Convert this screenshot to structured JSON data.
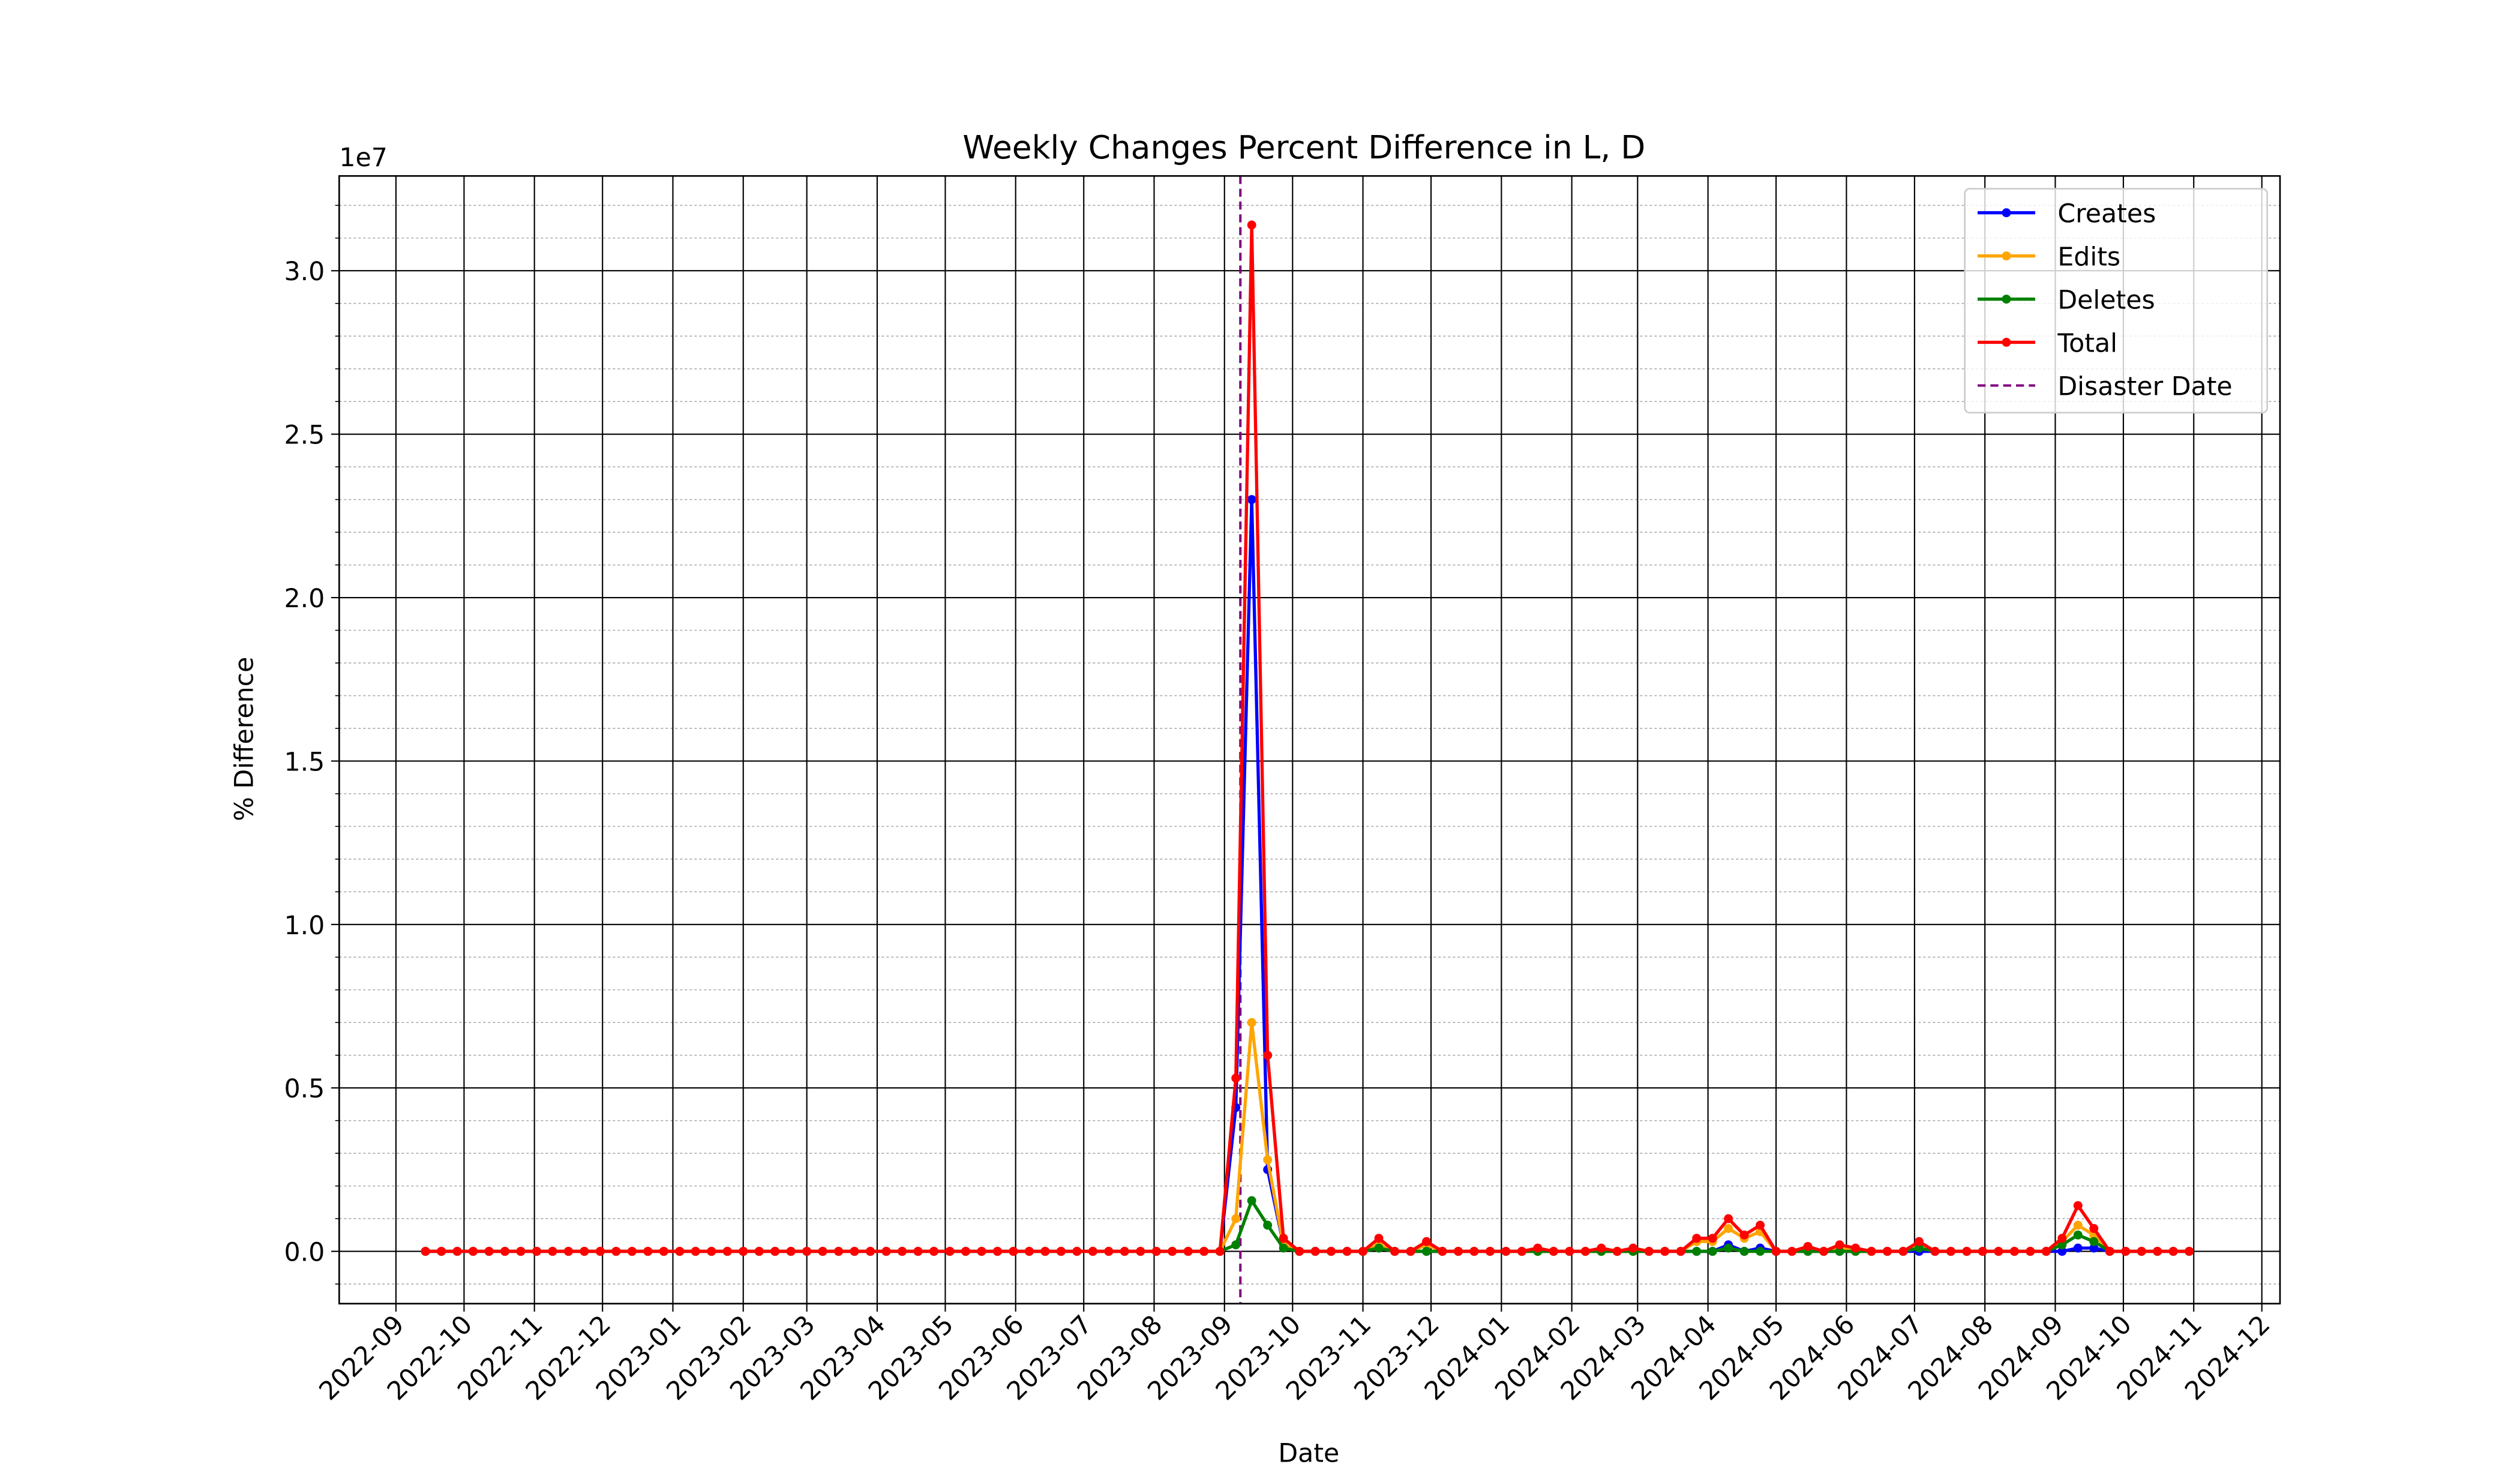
{
  "chart_data": {
    "type": "line",
    "title": "Weekly Changes Percent Difference in L, D",
    "x_label": "Date",
    "y_label": "% Difference",
    "y_offset_label": "1e7",
    "grid": true,
    "legend_position": "upper right",
    "xlim": [
      "2022-08-07",
      "2024-12-09"
    ],
    "xticks": [
      {
        "value": "2022-09-01",
        "label": "2022-09"
      },
      {
        "value": "2022-10-01",
        "label": "2022-10"
      },
      {
        "value": "2022-11-01",
        "label": "2022-11"
      },
      {
        "value": "2022-12-01",
        "label": "2022-12"
      },
      {
        "value": "2023-01-01",
        "label": "2023-01"
      },
      {
        "value": "2023-02-01",
        "label": "2023-02"
      },
      {
        "value": "2023-03-01",
        "label": "2023-03"
      },
      {
        "value": "2023-04-01",
        "label": "2023-04"
      },
      {
        "value": "2023-05-01",
        "label": "2023-05"
      },
      {
        "value": "2023-06-01",
        "label": "2023-06"
      },
      {
        "value": "2023-07-01",
        "label": "2023-07"
      },
      {
        "value": "2023-08-01",
        "label": "2023-08"
      },
      {
        "value": "2023-09-01",
        "label": "2023-09"
      },
      {
        "value": "2023-10-01",
        "label": "2023-10"
      },
      {
        "value": "2023-11-01",
        "label": "2023-11"
      },
      {
        "value": "2023-12-01",
        "label": "2023-12"
      },
      {
        "value": "2024-01-01",
        "label": "2024-01"
      },
      {
        "value": "2024-02-01",
        "label": "2024-02"
      },
      {
        "value": "2024-03-01",
        "label": "2024-03"
      },
      {
        "value": "2024-04-01",
        "label": "2024-04"
      },
      {
        "value": "2024-05-01",
        "label": "2024-05"
      },
      {
        "value": "2024-06-01",
        "label": "2024-06"
      },
      {
        "value": "2024-07-01",
        "label": "2024-07"
      },
      {
        "value": "2024-08-01",
        "label": "2024-08"
      },
      {
        "value": "2024-09-01",
        "label": "2024-09"
      },
      {
        "value": "2024-10-01",
        "label": "2024-10"
      },
      {
        "value": "2024-11-01",
        "label": "2024-11"
      },
      {
        "value": "2024-12-01",
        "label": "2024-12"
      }
    ],
    "ylim": [
      -0.16,
      3.29
    ],
    "yticks": [
      {
        "value": 0,
        "label": "0.0"
      },
      0.5,
      {
        "value": 1,
        "label": "1.0"
      },
      1.5,
      {
        "value": 2,
        "label": "2.0"
      },
      2.5,
      {
        "value": 3,
        "label": "3.0"
      }
    ],
    "yminorticks": [
      -0.1,
      0.1,
      0.2,
      0.3,
      0.4,
      0.6,
      0.7,
      0.8,
      0.9,
      1.1,
      1.2,
      1.3,
      1.4,
      1.6,
      1.7,
      1.8,
      1.9,
      2.1,
      2.2,
      2.3,
      2.4,
      2.6,
      2.7,
      2.8,
      2.9,
      3.1,
      3.2
    ],
    "x": [
      "2022-09-14",
      "2022-09-21",
      "2022-09-28",
      "2022-10-05",
      "2022-10-12",
      "2022-10-19",
      "2022-10-26",
      "2022-11-02",
      "2022-11-09",
      "2022-11-16",
      "2022-11-23",
      "2022-11-30",
      "2022-12-07",
      "2022-12-14",
      "2022-12-21",
      "2022-12-28",
      "2023-01-04",
      "2023-01-11",
      "2023-01-18",
      "2023-01-25",
      "2023-02-01",
      "2023-02-08",
      "2023-02-15",
      "2023-02-22",
      "2023-03-01",
      "2023-03-08",
      "2023-03-15",
      "2023-03-22",
      "2023-03-29",
      "2023-04-05",
      "2023-04-12",
      "2023-04-19",
      "2023-04-26",
      "2023-05-03",
      "2023-05-10",
      "2023-05-17",
      "2023-05-24",
      "2023-05-31",
      "2023-06-07",
      "2023-06-14",
      "2023-06-21",
      "2023-06-28",
      "2023-07-05",
      "2023-07-12",
      "2023-07-19",
      "2023-07-26",
      "2023-08-02",
      "2023-08-09",
      "2023-08-16",
      "2023-08-23",
      "2023-08-30",
      "2023-09-06",
      "2023-09-13",
      "2023-09-20",
      "2023-09-27",
      "2023-10-04",
      "2023-10-11",
      "2023-10-18",
      "2023-10-25",
      "2023-11-01",
      "2023-11-08",
      "2023-11-15",
      "2023-11-22",
      "2023-11-29",
      "2023-12-06",
      "2023-12-13",
      "2023-12-20",
      "2023-12-27",
      "2024-01-03",
      "2024-01-10",
      "2024-01-17",
      "2024-01-24",
      "2024-01-31",
      "2024-02-07",
      "2024-02-14",
      "2024-02-21",
      "2024-02-28",
      "2024-03-06",
      "2024-03-13",
      "2024-03-20",
      "2024-03-27",
      "2024-04-03",
      "2024-04-10",
      "2024-04-17",
      "2024-04-24",
      "2024-05-01",
      "2024-05-08",
      "2024-05-15",
      "2024-05-22",
      "2024-05-29",
      "2024-06-05",
      "2024-06-12",
      "2024-06-19",
      "2024-06-26",
      "2024-07-03",
      "2024-07-10",
      "2024-07-17",
      "2024-07-24",
      "2024-07-31",
      "2024-08-07",
      "2024-08-14",
      "2024-08-21",
      "2024-08-28",
      "2024-09-04",
      "2024-09-11",
      "2024-09-18",
      "2024-09-25",
      "2024-10-02",
      "2024-10-09",
      "2024-10-16",
      "2024-10-23",
      "2024-10-30"
    ],
    "series": [
      {
        "name": "Creates",
        "color": "blue",
        "values": [
          0,
          0,
          0,
          0,
          0,
          0,
          0,
          0,
          0,
          0,
          0,
          0,
          0,
          0,
          0,
          0,
          0,
          0,
          0,
          0,
          0,
          0,
          0,
          0,
          0,
          0,
          0,
          0,
          0,
          0,
          0,
          0,
          0,
          0,
          0,
          0,
          0,
          0,
          0,
          0,
          0,
          0,
          0,
          0,
          0,
          0,
          0,
          0,
          0,
          0,
          0,
          0.44,
          2.3,
          0.25,
          0.02,
          0,
          0,
          0,
          0,
          0,
          0.01,
          0,
          0,
          0,
          0,
          0,
          0,
          0,
          0,
          0,
          0,
          0,
          0,
          0,
          0,
          0,
          0,
          0,
          0,
          0,
          0,
          0,
          0.02,
          0,
          0.01,
          0,
          0,
          0,
          0,
          0,
          0,
          0,
          0,
          0,
          0,
          0,
          0,
          0,
          0,
          0,
          0,
          0,
          0,
          0,
          0.01,
          0.01,
          0,
          0,
          0,
          0,
          0,
          0
        ]
      },
      {
        "name": "Edits",
        "color": "orange",
        "values": [
          0,
          0,
          0,
          0,
          0,
          0,
          0,
          0,
          0,
          0,
          0,
          0,
          0,
          0,
          0,
          0,
          0,
          0,
          0,
          0,
          0,
          0,
          0,
          0,
          0,
          0,
          0,
          0,
          0,
          0,
          0,
          0,
          0,
          0,
          0,
          0,
          0,
          0,
          0,
          0,
          0,
          0,
          0,
          0,
          0,
          0,
          0,
          0,
          0,
          0,
          0,
          0.1,
          0.7,
          0.28,
          0.02,
          0,
          0,
          0,
          0,
          0,
          0.02,
          0,
          0,
          0.02,
          0,
          0,
          0,
          0,
          0,
          0,
          0,
          0,
          0,
          0,
          0,
          0,
          0,
          0,
          0,
          0,
          0.03,
          0.03,
          0.07,
          0.04,
          0.06,
          0,
          0,
          0,
          0,
          0.01,
          0,
          0,
          0,
          0,
          0.02,
          0,
          0,
          0,
          0,
          0,
          0,
          0,
          0,
          0.03,
          0.08,
          0.05,
          0,
          0,
          0,
          0,
          0,
          0
        ]
      },
      {
        "name": "Deletes",
        "color": "green",
        "values": [
          0,
          0,
          0,
          0,
          0,
          0,
          0,
          0,
          0,
          0,
          0,
          0,
          0,
          0,
          0,
          0,
          0,
          0,
          0,
          0,
          0,
          0,
          0,
          0,
          0,
          0,
          0,
          0,
          0,
          0,
          0,
          0,
          0,
          0,
          0,
          0,
          0,
          0,
          0,
          0,
          0,
          0,
          0,
          0,
          0,
          0,
          0,
          0,
          0,
          0,
          0,
          0.02,
          0.155,
          0.08,
          0.01,
          0,
          0,
          0,
          0,
          0,
          0.01,
          0,
          0,
          0,
          0,
          0,
          0,
          0,
          0,
          0,
          0,
          0,
          0,
          0,
          0,
          0,
          0,
          0,
          0,
          0,
          0,
          0,
          0.01,
          0,
          0,
          0,
          0,
          0,
          0,
          0,
          0,
          0,
          0,
          0,
          0.01,
          0,
          0,
          0,
          0,
          0,
          0,
          0,
          0,
          0.02,
          0.05,
          0.03,
          0,
          0,
          0,
          0,
          0,
          0
        ]
      },
      {
        "name": "Total",
        "color": "red",
        "values": [
          0,
          0,
          0,
          0,
          0,
          0,
          0,
          0,
          0,
          0,
          0,
          0,
          0,
          0,
          0,
          0,
          0,
          0,
          0,
          0,
          0,
          0,
          0,
          0,
          0,
          0,
          0,
          0,
          0,
          0,
          0,
          0,
          0,
          0,
          0,
          0,
          0,
          0,
          0,
          0,
          0,
          0,
          0,
          0,
          0,
          0,
          0,
          0,
          0,
          0,
          0,
          0.53,
          3.14,
          0.6,
          0.04,
          0,
          0,
          0,
          0,
          0,
          0.04,
          0,
          0,
          0.03,
          0,
          0,
          0,
          0,
          0,
          0,
          0.01,
          0,
          0,
          0,
          0.01,
          0,
          0.01,
          0,
          0,
          0,
          0.04,
          0.04,
          0.1,
          0.05,
          0.08,
          0,
          0,
          0.015,
          0,
          0.02,
          0.01,
          0,
          0,
          0,
          0.03,
          0,
          0,
          0,
          0,
          0,
          0,
          0,
          0,
          0.04,
          0.14,
          0.07,
          0,
          0,
          0,
          0,
          0,
          0
        ]
      }
    ],
    "vlines": [
      {
        "name": "Disaster Date",
        "x": "2023-09-08",
        "color": "purple",
        "style": "dashed"
      }
    ]
  }
}
